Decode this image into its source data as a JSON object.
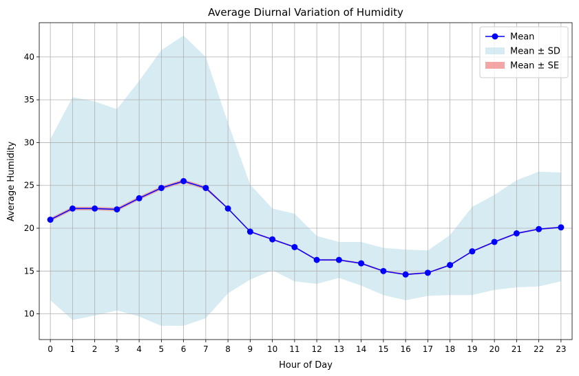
{
  "chart_data": {
    "type": "line",
    "title": "Average Diurnal Variation of Humidity",
    "xlabel": "Hour of Day",
    "ylabel": "Average Humidity",
    "x": [
      0,
      1,
      2,
      3,
      4,
      5,
      6,
      7,
      8,
      9,
      10,
      11,
      12,
      13,
      14,
      15,
      16,
      17,
      18,
      19,
      20,
      21,
      22,
      23
    ],
    "xlim": [
      -0.5,
      23.5
    ],
    "ylim": [
      7,
      44
    ],
    "yticks": [
      10,
      15,
      20,
      25,
      30,
      35,
      40
    ],
    "grid": true,
    "legend_position": "top-right",
    "series": [
      {
        "name": "Mean",
        "kind": "line-with-markers",
        "color": "#0000ff",
        "values": [
          21.0,
          22.3,
          22.3,
          22.2,
          23.5,
          24.7,
          25.5,
          24.7,
          22.3,
          19.6,
          18.7,
          17.8,
          16.3,
          16.3,
          15.9,
          15.0,
          14.6,
          14.8,
          15.7,
          17.3,
          18.4,
          19.4,
          19.9,
          20.1
        ]
      },
      {
        "name": "Mean ± SD",
        "kind": "band",
        "color": "#add8e6",
        "lower": [
          11.6,
          9.3,
          9.8,
          10.4,
          9.7,
          8.6,
          8.6,
          9.5,
          12.4,
          14.0,
          15.1,
          13.8,
          13.5,
          14.2,
          13.3,
          12.2,
          11.6,
          12.1,
          12.2,
          12.2,
          12.8,
          13.1,
          13.2,
          13.8
        ],
        "upper": [
          30.4,
          35.3,
          34.8,
          33.9,
          37.2,
          40.8,
          42.5,
          40.0,
          32.3,
          25.1,
          22.3,
          21.7,
          19.1,
          18.4,
          18.4,
          17.7,
          17.5,
          17.4,
          19.2,
          22.5,
          23.9,
          25.6,
          26.6,
          26.5
        ]
      },
      {
        "name": "Mean ± SE",
        "kind": "band",
        "color": "#f08080",
        "lower": [
          20.8,
          22.1,
          22.1,
          22.0,
          23.3,
          24.5,
          25.3,
          24.5,
          22.2,
          19.5,
          18.6,
          17.7,
          16.2,
          16.2,
          15.8,
          14.9,
          14.5,
          14.7,
          15.6,
          17.2,
          18.3,
          19.3,
          19.8,
          20.0
        ],
        "upper": [
          21.2,
          22.5,
          22.5,
          22.4,
          23.7,
          24.9,
          25.7,
          24.9,
          22.4,
          19.7,
          18.8,
          17.9,
          16.4,
          16.4,
          16.0,
          15.1,
          14.7,
          14.9,
          15.8,
          17.4,
          18.5,
          19.5,
          20.0,
          20.2
        ]
      }
    ]
  }
}
